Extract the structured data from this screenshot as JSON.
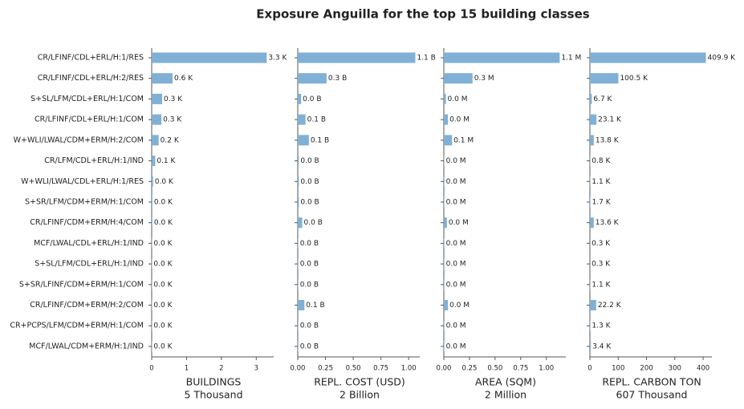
{
  "title": "Exposure Anguilla for the top 15 building classes",
  "chart_data": [
    {
      "type": "bar",
      "orientation": "horizontal",
      "color": "#80b0d5",
      "categories": [
        "CR/LFINF/CDL+ERL/H:1/RES",
        "CR/LFINF/CDL+ERL/H:2/RES",
        "S+SL/LFM/CDL+ERL/H:1/COM",
        "CR/LFINF/CDL+ERL/H:1/COM",
        "W+WLI/LWAL/CDM+ERM/H:2/COM",
        "CR/LFM/CDL+ERL/H:1/IND",
        "W+WLI/LWAL/CDL+ERL/H:1/RES",
        "S+SR/LFM/CDM+ERM/H:1/COM",
        "CR/LFINF/CDM+ERM/H:4/COM",
        "MCF/LWAL/CDL+ERL/H:1/IND",
        "S+SL/LFM/CDL+ERL/H:1/IND",
        "S+SR/LFINF/CDM+ERM/H:1/COM",
        "CR/LFINF/CDM+ERM/H:2/COM",
        "CR+PCPS/LFM/CDM+ERM/H:1/COM",
        "MCF/LWAL/CDM+ERM/H:1/IND"
      ],
      "values": [
        3.3,
        0.6,
        0.3,
        0.28,
        0.2,
        0.1,
        0.04,
        0.02,
        0.02,
        0.01,
        0.01,
        0.01,
        0.01,
        0.01,
        0.01
      ],
      "value_labels": [
        "3.3 K",
        "0.6 K",
        "0.3 K",
        "0.3 K",
        "0.2 K",
        "0.1 K",
        "0.0 K",
        "0.0 K",
        "0.0 K",
        "0.0 K",
        "0.0 K",
        "0.0 K",
        "0.0 K",
        "0.0 K",
        "0.0 K"
      ],
      "xlim": [
        0,
        3.5
      ],
      "xticks": [
        0,
        1,
        2,
        3
      ],
      "xlabel": "BUILDINGS",
      "xlabel_sub": "5 Thousand"
    },
    {
      "type": "bar",
      "orientation": "horizontal",
      "color": "#80b0d5",
      "values": [
        1.06,
        0.26,
        0.03,
        0.07,
        0.1,
        0.01,
        0.01,
        0.01,
        0.04,
        0.005,
        0.005,
        0.005,
        0.06,
        0.005,
        0.005
      ],
      "value_labels": [
        "1.1 B",
        "0.3 B",
        "0.0 B",
        "0.1 B",
        "0.1 B",
        "0.0 B",
        "0.0 B",
        "0.0 B",
        "0.0 B",
        "0.0 B",
        "0.0 B",
        "0.0 B",
        "0.1 B",
        "0.0 B",
        "0.0 B"
      ],
      "xlim": [
        0,
        1.1
      ],
      "xticks": [
        {
          "value": 0,
          "label": "0.00"
        },
        0.25,
        {
          "value": 0.5,
          "label": "0.50"
        },
        0.75,
        {
          "value": 1,
          "label": "1.00"
        }
      ],
      "xlabel": "REPL. COST (USD)",
      "xlabel_sub": "2 Billion"
    },
    {
      "type": "bar",
      "orientation": "horizontal",
      "color": "#80b0d5",
      "values": [
        1.13,
        0.28,
        0.02,
        0.04,
        0.08,
        0.005,
        0.005,
        0.005,
        0.03,
        0.005,
        0.005,
        0.005,
        0.04,
        0.005,
        0.005
      ],
      "value_labels": [
        "1.1 M",
        "0.3 M",
        "0.0 M",
        "0.0 M",
        "0.1 M",
        "0.0 M",
        "0.0 M",
        "0.0 M",
        "0.0 M",
        "0.0 M",
        "0.0 M",
        "0.0 M",
        "0.0 M",
        "0.0 M",
        "0.0 M"
      ],
      "xlim": [
        0,
        1.19
      ],
      "xticks": [
        {
          "value": 0,
          "label": "0.00"
        },
        0.25,
        {
          "value": 0.5,
          "label": "0.50"
        },
        0.75,
        {
          "value": 1,
          "label": "1.00"
        }
      ],
      "xlabel": "AREA (SQM)",
      "xlabel_sub": "2 Million"
    },
    {
      "type": "bar",
      "orientation": "horizontal",
      "color": "#80b0d5",
      "values": [
        409.9,
        100.5,
        6.7,
        23.1,
        13.8,
        0.8,
        1.1,
        1.7,
        13.6,
        0.3,
        0.3,
        1.1,
        22.2,
        1.3,
        3.4
      ],
      "value_labels": [
        "409.9 K",
        "100.5 K",
        "6.7 K",
        "23.1 K",
        "13.8 K",
        "0.8 K",
        "1.1 K",
        "1.7 K",
        "13.6 K",
        "0.3 K",
        "0.3 K",
        "1.1 K",
        "22.2 K",
        "1.3 K",
        "3.4 K"
      ],
      "xlim": [
        0,
        431
      ],
      "xticks": [
        0,
        100,
        200,
        300,
        400
      ],
      "xlabel": "REPL. CARBON TON",
      "xlabel_sub": "607 Thousand"
    }
  ]
}
